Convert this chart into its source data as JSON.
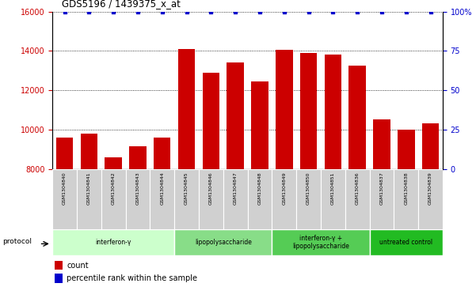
{
  "title": "GDS5196 / 1439375_x_at",
  "samples": [
    "GSM1304840",
    "GSM1304841",
    "GSM1304842",
    "GSM1304843",
    "GSM1304844",
    "GSM1304845",
    "GSM1304846",
    "GSM1304847",
    "GSM1304848",
    "GSM1304849",
    "GSM1304850",
    "GSM1304851",
    "GSM1304836",
    "GSM1304837",
    "GSM1304838",
    "GSM1304839"
  ],
  "counts": [
    9600,
    9800,
    8600,
    9150,
    9600,
    14100,
    12900,
    13400,
    12450,
    14050,
    13900,
    13800,
    13250,
    10550,
    10000,
    10350
  ],
  "percentile_ranks": [
    100,
    100,
    100,
    100,
    100,
    100,
    100,
    100,
    100,
    100,
    100,
    100,
    100,
    100,
    100,
    100
  ],
  "bar_color": "#cc0000",
  "dot_color": "#0000cc",
  "ylim_left": [
    8000,
    16000
  ],
  "ylim_right": [
    0,
    100
  ],
  "yticks_left": [
    8000,
    10000,
    12000,
    14000,
    16000
  ],
  "yticks_right": [
    0,
    25,
    50,
    75,
    100
  ],
  "protocols": [
    {
      "label": "interferon-γ",
      "start": 0,
      "end": 5,
      "color": "#ccffcc"
    },
    {
      "label": "lipopolysaccharide",
      "start": 5,
      "end": 9,
      "color": "#88dd88"
    },
    {
      "label": "interferon-γ +\nlipopolysaccharide",
      "start": 9,
      "end": 13,
      "color": "#55cc55"
    },
    {
      "label": "untreated control",
      "start": 13,
      "end": 16,
      "color": "#22bb22"
    }
  ],
  "protocol_label": "protocol",
  "legend_count_label": "count",
  "legend_pct_label": "percentile rank within the sample",
  "background_color": "#ffffff",
  "tick_label_color_left": "#cc0000",
  "tick_label_color_right": "#0000cc",
  "sample_box_color": "#d0d0d0"
}
